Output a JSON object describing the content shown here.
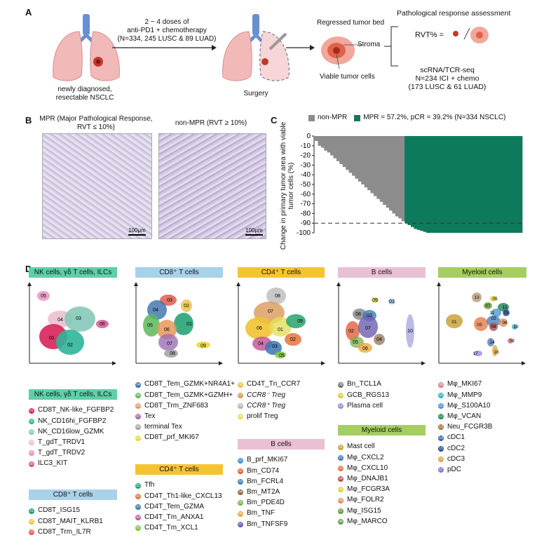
{
  "panelA": {
    "label": "A",
    "arrow_text": [
      "2 ~ 4 doses of",
      "anti-PD1 + chemotherapy",
      "(N=334, 245 LUSC & 89 LUAD)"
    ],
    "lung_caption": [
      "newly diagnosed,",
      "resectable NSCLC"
    ],
    "surgery": "Surgery",
    "regressed": "Regressed tumor bed",
    "stroma": "Stroma",
    "viable": "Viable tumor cells",
    "assess_title": "Pathological response assessment",
    "rvt_formula": "RVT% =",
    "rvt_slash": "/",
    "scrna": [
      "scRNA/TCR-seq",
      "N=234 ICI + chemo",
      "(173 LUSC & 61 LUAD)"
    ]
  },
  "panelB": {
    "label": "B",
    "mpr_title": [
      "MPR (Major Pathological Response,",
      "RVT ≤ 10%)"
    ],
    "nonmpr_title": "non-MPR (RVT ≥ 10%)",
    "scale1": "100μm",
    "scale2": "100μm"
  },
  "panelC": {
    "label": "C",
    "legend_nonmpr": "non-MPR",
    "legend_mpr": "MPR = 57.2%, pCR = 39.2% (N=334 NSCLC)",
    "ylabel": "Change in primary tumor area with viable tumor cells (%)",
    "colors": {
      "nonmpr": "#8c8c8c",
      "mpr": "#0e7a5c"
    }
  },
  "chart_data": {
    "type": "bar",
    "title": "",
    "xlabel": "",
    "ylabel": "Change in primary tumor area with viable tumor cells (%)",
    "ylim": [
      -100,
      0
    ],
    "yticks": [
      "0",
      "-10",
      "-20",
      "-30",
      "-40",
      "-50",
      "-60",
      "-70",
      "-80",
      "-90",
      "-100"
    ],
    "reference_line": -90,
    "series": [
      {
        "name": "non-MPR",
        "values": [
          -5,
          -10,
          -12,
          -15,
          -17,
          -20,
          -23,
          -26,
          -29,
          -32,
          -35,
          -38,
          -41,
          -44,
          -47,
          -50,
          -53,
          -56,
          -59,
          -62,
          -65,
          -68,
          -71,
          -74,
          -77,
          -80,
          -83,
          -85,
          -88
        ]
      },
      {
        "name": "MPR",
        "values": [
          -90,
          -92,
          -94,
          -96,
          -97,
          -98,
          -99,
          -100,
          -100,
          -100,
          -100,
          -100,
          -100,
          -100,
          -100,
          -100,
          -100,
          -100,
          -100,
          -100,
          -100,
          -100,
          -100,
          -100,
          -100,
          -100,
          -100,
          -100,
          -100,
          -100,
          -100,
          -100,
          -100,
          -100,
          -100,
          -100,
          -100,
          -100
        ]
      }
    ]
  },
  "panelD": {
    "label": "D",
    "umap_titles": {
      "nk": "NK cells, γδ T cells, ILCs",
      "cd8": "CD8⁺ T cells",
      "cd4": "CD4⁺ T cells",
      "b": "B cells",
      "my": "Myeloid cells"
    },
    "nk_labels": [
      "05",
      "04",
      "03",
      "06",
      "01",
      "02"
    ],
    "cd8_labels": [
      "03",
      "04",
      "02",
      "05",
      "01",
      "06",
      "07",
      "08",
      "09"
    ],
    "cd4_labels": [
      "08",
      "07",
      "06",
      "01",
      "03",
      "04",
      "02",
      "05",
      "09"
    ],
    "b_labels": [
      "09",
      "01",
      "08",
      "03",
      "02",
      "07",
      "04",
      "05",
      "06",
      "10"
    ],
    "my_labels": [
      "13",
      "05",
      "07",
      "11",
      "12",
      "01",
      "03",
      "02",
      "04",
      "06",
      "15",
      "10",
      "09",
      "14",
      "17",
      "16"
    ],
    "legend_nk_title": "NK cells, γδ T cells, ILCs",
    "legend_nk": [
      {
        "n": "01",
        "t": "CD8T_NK-like_FGFBP2",
        "c": "#d6245a"
      },
      {
        "n": "02",
        "t": "NK_CD16hi_FGFBP2",
        "c": "#2fb59a"
      },
      {
        "n": "03",
        "t": "NK_CD16low_GZMK",
        "c": "#86c9b8"
      },
      {
        "n": "04",
        "t": "T_gdT_TRDV1",
        "c": "#eac0d0"
      },
      {
        "n": "05",
        "t": "T_gdT_TRDV2",
        "c": "#e58fbd"
      },
      {
        "n": "06",
        "t": "ILC3_KIT",
        "c": "#d0508c"
      }
    ],
    "legend_cd8_title": "CD8⁺ T cells",
    "legend_cd8a": [
      {
        "n": "01",
        "t": "CD8T_ISG15",
        "c": "#1a9e6e"
      },
      {
        "n": "02",
        "t": "CD8T_MAIT_KLRB1",
        "c": "#e9c44a"
      },
      {
        "n": "03",
        "t": "CD8T_Trm_IL7R",
        "c": "#e15a4e"
      }
    ],
    "legend_cd8b": [
      {
        "n": "04",
        "t": "CD8T_Tem_GZMK+NR4A1+",
        "c": "#3a6fb0"
      },
      {
        "n": "05",
        "t": "CD8T_Tem_GZMK+GZMH+",
        "c": "#5cb85c"
      },
      {
        "n": "06",
        "t": "CD8T_Trm_ZNF683",
        "c": "#e8975a"
      },
      {
        "n": "07",
        "t": "Tex",
        "c": "#9b6fb5"
      },
      {
        "n": "08",
        "t": "terminal Tex",
        "c": "#a0a0a0"
      },
      {
        "n": "09",
        "t": "CD8T_prf_MKI67",
        "c": "#e7d63c"
      }
    ],
    "legend_cd4_title": "CD4⁺ T cells",
    "legend_cd4a": [
      {
        "n": "01",
        "t": "Tfh",
        "c": "#27a36d"
      },
      {
        "n": "02",
        "t": "CD4T_Th1-like_CXCL13",
        "c": "#e3743c"
      },
      {
        "n": "03",
        "t": "CD4T_Tem_GZMA",
        "c": "#3b76b4"
      },
      {
        "n": "04",
        "t": "CD4T_Tm_ANXA1",
        "c": "#c45a9a"
      },
      {
        "n": "05",
        "t": "CD4T_Tm_XCL1",
        "c": "#7fbf3f"
      }
    ],
    "legend_cd4b": [
      {
        "n": "06",
        "t": "CD4T_Tn_CCR7",
        "c": "#f1c232"
      },
      {
        "n": "07",
        "t": "CCR8⁻ Treg",
        "c": "#d99a5a"
      },
      {
        "n": "08",
        "t": "CCR8⁺ Treg",
        "c": "#b0b0b0"
      },
      {
        "n": "09",
        "t": "prolif Treg",
        "c": "#e5df5a"
      }
    ],
    "legend_b_title": "B cells",
    "legend_ba": [
      {
        "n": "08",
        "t": "Bn_TCL1A",
        "c": "#707070"
      },
      {
        "n": "09",
        "t": "GCB_RGS13",
        "c": "#d6cf3c"
      },
      {
        "n": "10",
        "t": "Plasma cell",
        "c": "#8e8ed6"
      }
    ],
    "legend_bb": [
      {
        "n": "01",
        "t": "B_prf_MKI67",
        "c": "#3a8fd0"
      },
      {
        "n": "02",
        "t": "Bm_CD74",
        "c": "#e0603c"
      },
      {
        "n": "03",
        "t": "Bm_FCRL4",
        "c": "#3c7ab8"
      },
      {
        "n": "04",
        "t": "Bm_MT2A",
        "c": "#8a6a4a"
      },
      {
        "n": "05",
        "t": "Bm_PDE4D",
        "c": "#7cb04c"
      },
      {
        "n": "06",
        "t": "Bm_TNF",
        "c": "#e9a93c"
      },
      {
        "n": "07",
        "t": "Bm_TNFSF9",
        "c": "#6c5fb0"
      }
    ],
    "legend_my_title": "Myeloid cells",
    "legend_mya": [
      {
        "n": "01",
        "t": "Mast cell",
        "c": "#c9a23c"
      },
      {
        "n": "02",
        "t": "Mφ_CXCL2",
        "c": "#3c7ab8"
      },
      {
        "n": "03",
        "t": "Mφ_CXCL10",
        "c": "#e3743c"
      },
      {
        "n": "04",
        "t": "Mφ_DNAJB1",
        "c": "#b05050"
      },
      {
        "n": "05",
        "t": "Mφ_FCGR3A",
        "c": "#e0d040"
      },
      {
        "n": "06",
        "t": "Mφ_FOLR2",
        "c": "#e08c5a"
      },
      {
        "n": "07",
        "t": "Mφ_ISG15",
        "c": "#6a9e3c"
      },
      {
        "n": "08",
        "t": "Mφ_MARCO",
        "c": "#5aa04c"
      }
    ],
    "legend_myb": [
      {
        "n": "09",
        "t": "Mφ_MKI67",
        "c": "#e07a8a"
      },
      {
        "n": "10",
        "t": "Mφ_MMP9",
        "c": "#3ab0c0"
      },
      {
        "n": "11",
        "t": "Mφ_S100A10",
        "c": "#4a9ad0"
      },
      {
        "n": "12",
        "t": "Mφ_VCAN",
        "c": "#2a8a5a"
      },
      {
        "n": "13",
        "t": "Neu_FCGR3B",
        "c": "#a07a4a"
      },
      {
        "n": "14",
        "t": "cDC1",
        "c": "#3c6ab0"
      },
      {
        "n": "15",
        "t": "cDC2",
        "c": "#2a4a9a"
      },
      {
        "n": "16",
        "t": "cDC3",
        "c": "#d9a83c"
      },
      {
        "n": "17",
        "t": "pDC",
        "c": "#8a7ad6"
      }
    ]
  }
}
